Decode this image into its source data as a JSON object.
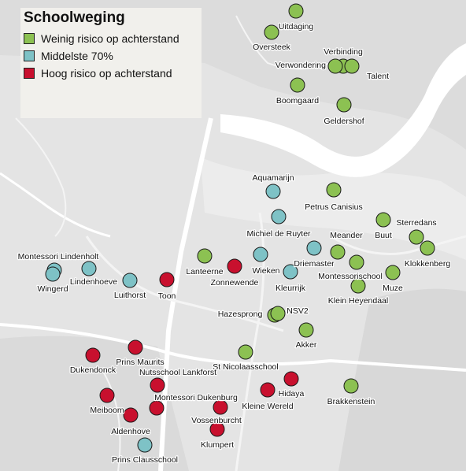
{
  "legend": {
    "title": "Schoolweging",
    "categories": [
      {
        "key": "low",
        "label": "Weinig risico op achterstand",
        "color": "#8cc152"
      },
      {
        "key": "mid",
        "label": "Middelste 70%",
        "color": "#7ec2c6"
      },
      {
        "key": "high",
        "label": "Hoog risico op achterstand",
        "color": "#c8102e"
      }
    ]
  },
  "schools": [
    {
      "name": "Uitdaging",
      "category": "low"
    },
    {
      "name": "Oversteek",
      "category": "low"
    },
    {
      "name": "Verbinding",
      "category": "low"
    },
    {
      "name": "Verwondering",
      "category": "low"
    },
    {
      "name": "Talent",
      "category": "low"
    },
    {
      "name": "Boomgaard",
      "category": "low"
    },
    {
      "name": "Geldershof",
      "category": "low"
    },
    {
      "name": "Aquamarijn",
      "category": "mid"
    },
    {
      "name": "Petrus Canisius",
      "category": "low"
    },
    {
      "name": "Michiel de Ruyter",
      "category": "mid"
    },
    {
      "name": "Meander",
      "category": "low"
    },
    {
      "name": "Buut",
      "category": "low"
    },
    {
      "name": "Sterredans",
      "category": "low"
    },
    {
      "name": "Klokkenberg",
      "category": "low"
    },
    {
      "name": "Montessori Lindenholt",
      "category": "mid"
    },
    {
      "name": "Wingerd",
      "category": "mid"
    },
    {
      "name": "Lindenhoeve",
      "category": "mid"
    },
    {
      "name": "Luithorst",
      "category": "mid"
    },
    {
      "name": "Toon",
      "category": "high"
    },
    {
      "name": "Lanteerne",
      "category": "low"
    },
    {
      "name": "Zonnewende",
      "category": "high"
    },
    {
      "name": "Wieken",
      "category": "mid"
    },
    {
      "name": "Driemaster",
      "category": "mid"
    },
    {
      "name": "Kleurrijk",
      "category": "mid"
    },
    {
      "name": "Montessorischool",
      "category": "low"
    },
    {
      "name": "Muze",
      "category": "low"
    },
    {
      "name": "Klein Heyendaal",
      "category": "low"
    },
    {
      "name": "Hazesprong",
      "category": "low"
    },
    {
      "name": "NSV2",
      "category": "low"
    },
    {
      "name": "Akker",
      "category": "low"
    },
    {
      "name": "St Nicolaasschool",
      "category": "low"
    },
    {
      "name": "Prins Maurits",
      "category": "high"
    },
    {
      "name": "Dukendonck",
      "category": "high"
    },
    {
      "name": "Nutsschool Lankforst",
      "category": "high"
    },
    {
      "name": "Meiboom",
      "category": "high"
    },
    {
      "name": "Aldenhove",
      "category": "high"
    },
    {
      "name": "Montessori Dukenburg",
      "category": "high"
    },
    {
      "name": "Vossenburcht",
      "category": "high"
    },
    {
      "name": "Klumpert",
      "category": "high"
    },
    {
      "name": "Hidaya",
      "category": "high"
    },
    {
      "name": "Kleine Wereld",
      "category": "high"
    },
    {
      "name": "Prins Clausschool",
      "category": "mid"
    },
    {
      "name": "Brakkenstein",
      "category": "low"
    }
  ]
}
